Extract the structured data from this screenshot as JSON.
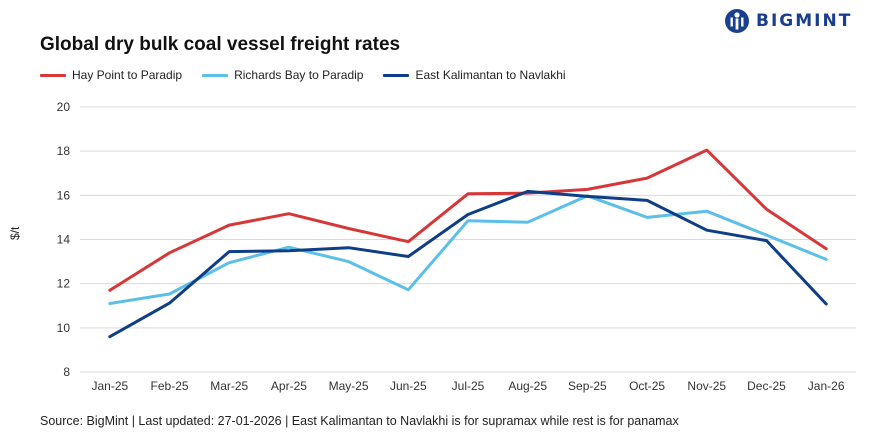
{
  "brand": {
    "name": "BIGMINT",
    "color": "#1b3f8f"
  },
  "chart_data": {
    "type": "line",
    "title": "Global dry bulk coal vessel freight rates",
    "ylabel": "$/t",
    "xlabel": "",
    "ylim": [
      8,
      20
    ],
    "yticks": [
      8,
      10,
      12,
      14,
      16,
      18,
      20
    ],
    "grid": true,
    "legend_position": "top-left",
    "categories": [
      "Jan-25",
      "Feb-25",
      "Mar-25",
      "Apr-25",
      "May-25",
      "Jun-25",
      "Jul-25",
      "Aug-25",
      "Sep-25",
      "Oct-25",
      "Nov-25",
      "Dec-25",
      "Jan-26"
    ],
    "series": [
      {
        "name": "Hay Point to Paradip",
        "color": "#d8373a",
        "values": [
          11.7,
          13.4,
          14.65,
          15.17,
          14.5,
          13.9,
          16.07,
          16.1,
          16.27,
          16.78,
          18.05,
          15.37,
          13.58
        ]
      },
      {
        "name": "Richards Bay to Paradip",
        "color": "#5bbfe8",
        "values": [
          11.1,
          11.53,
          12.95,
          13.65,
          13.0,
          11.72,
          14.85,
          14.78,
          15.98,
          15.0,
          15.28,
          14.2,
          13.1
        ]
      },
      {
        "name": "East Kalimantan to Navlakhi",
        "color": "#0f3d86",
        "values": [
          9.6,
          11.12,
          13.45,
          13.49,
          13.63,
          13.23,
          15.13,
          16.18,
          15.95,
          15.77,
          14.42,
          13.95,
          11.08
        ]
      }
    ]
  },
  "footer": {
    "source": "Source: BigMint | Last updated: 27-01-2026 | East Kalimantan to Navlakhi is for supramax while rest is for panamax"
  }
}
